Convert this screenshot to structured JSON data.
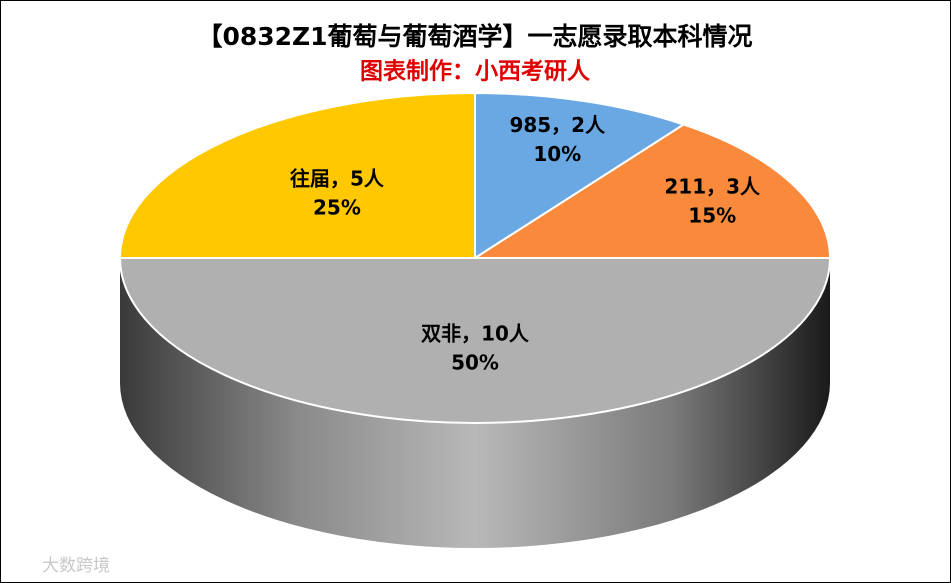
{
  "chart_data": {
    "type": "pie3d",
    "title": "【0832Z1葡萄与葡萄酒学】一志愿录取本科情况",
    "subtitle": "图表制作：小西考研人",
    "categories": [
      "985",
      "211",
      "双非",
      "往届"
    ],
    "values": [
      2,
      3,
      10,
      5
    ],
    "value_labels": [
      "985，2人",
      "211，3人",
      "双非，10人",
      "往届，5人"
    ],
    "percent_labels": [
      "10%",
      "15%",
      "50%",
      "25%"
    ],
    "colors": [
      "#6aa8e4",
      "#f98a3c",
      "#b0b0b0",
      "#ffc800"
    ],
    "watermark": "大数跨境"
  }
}
